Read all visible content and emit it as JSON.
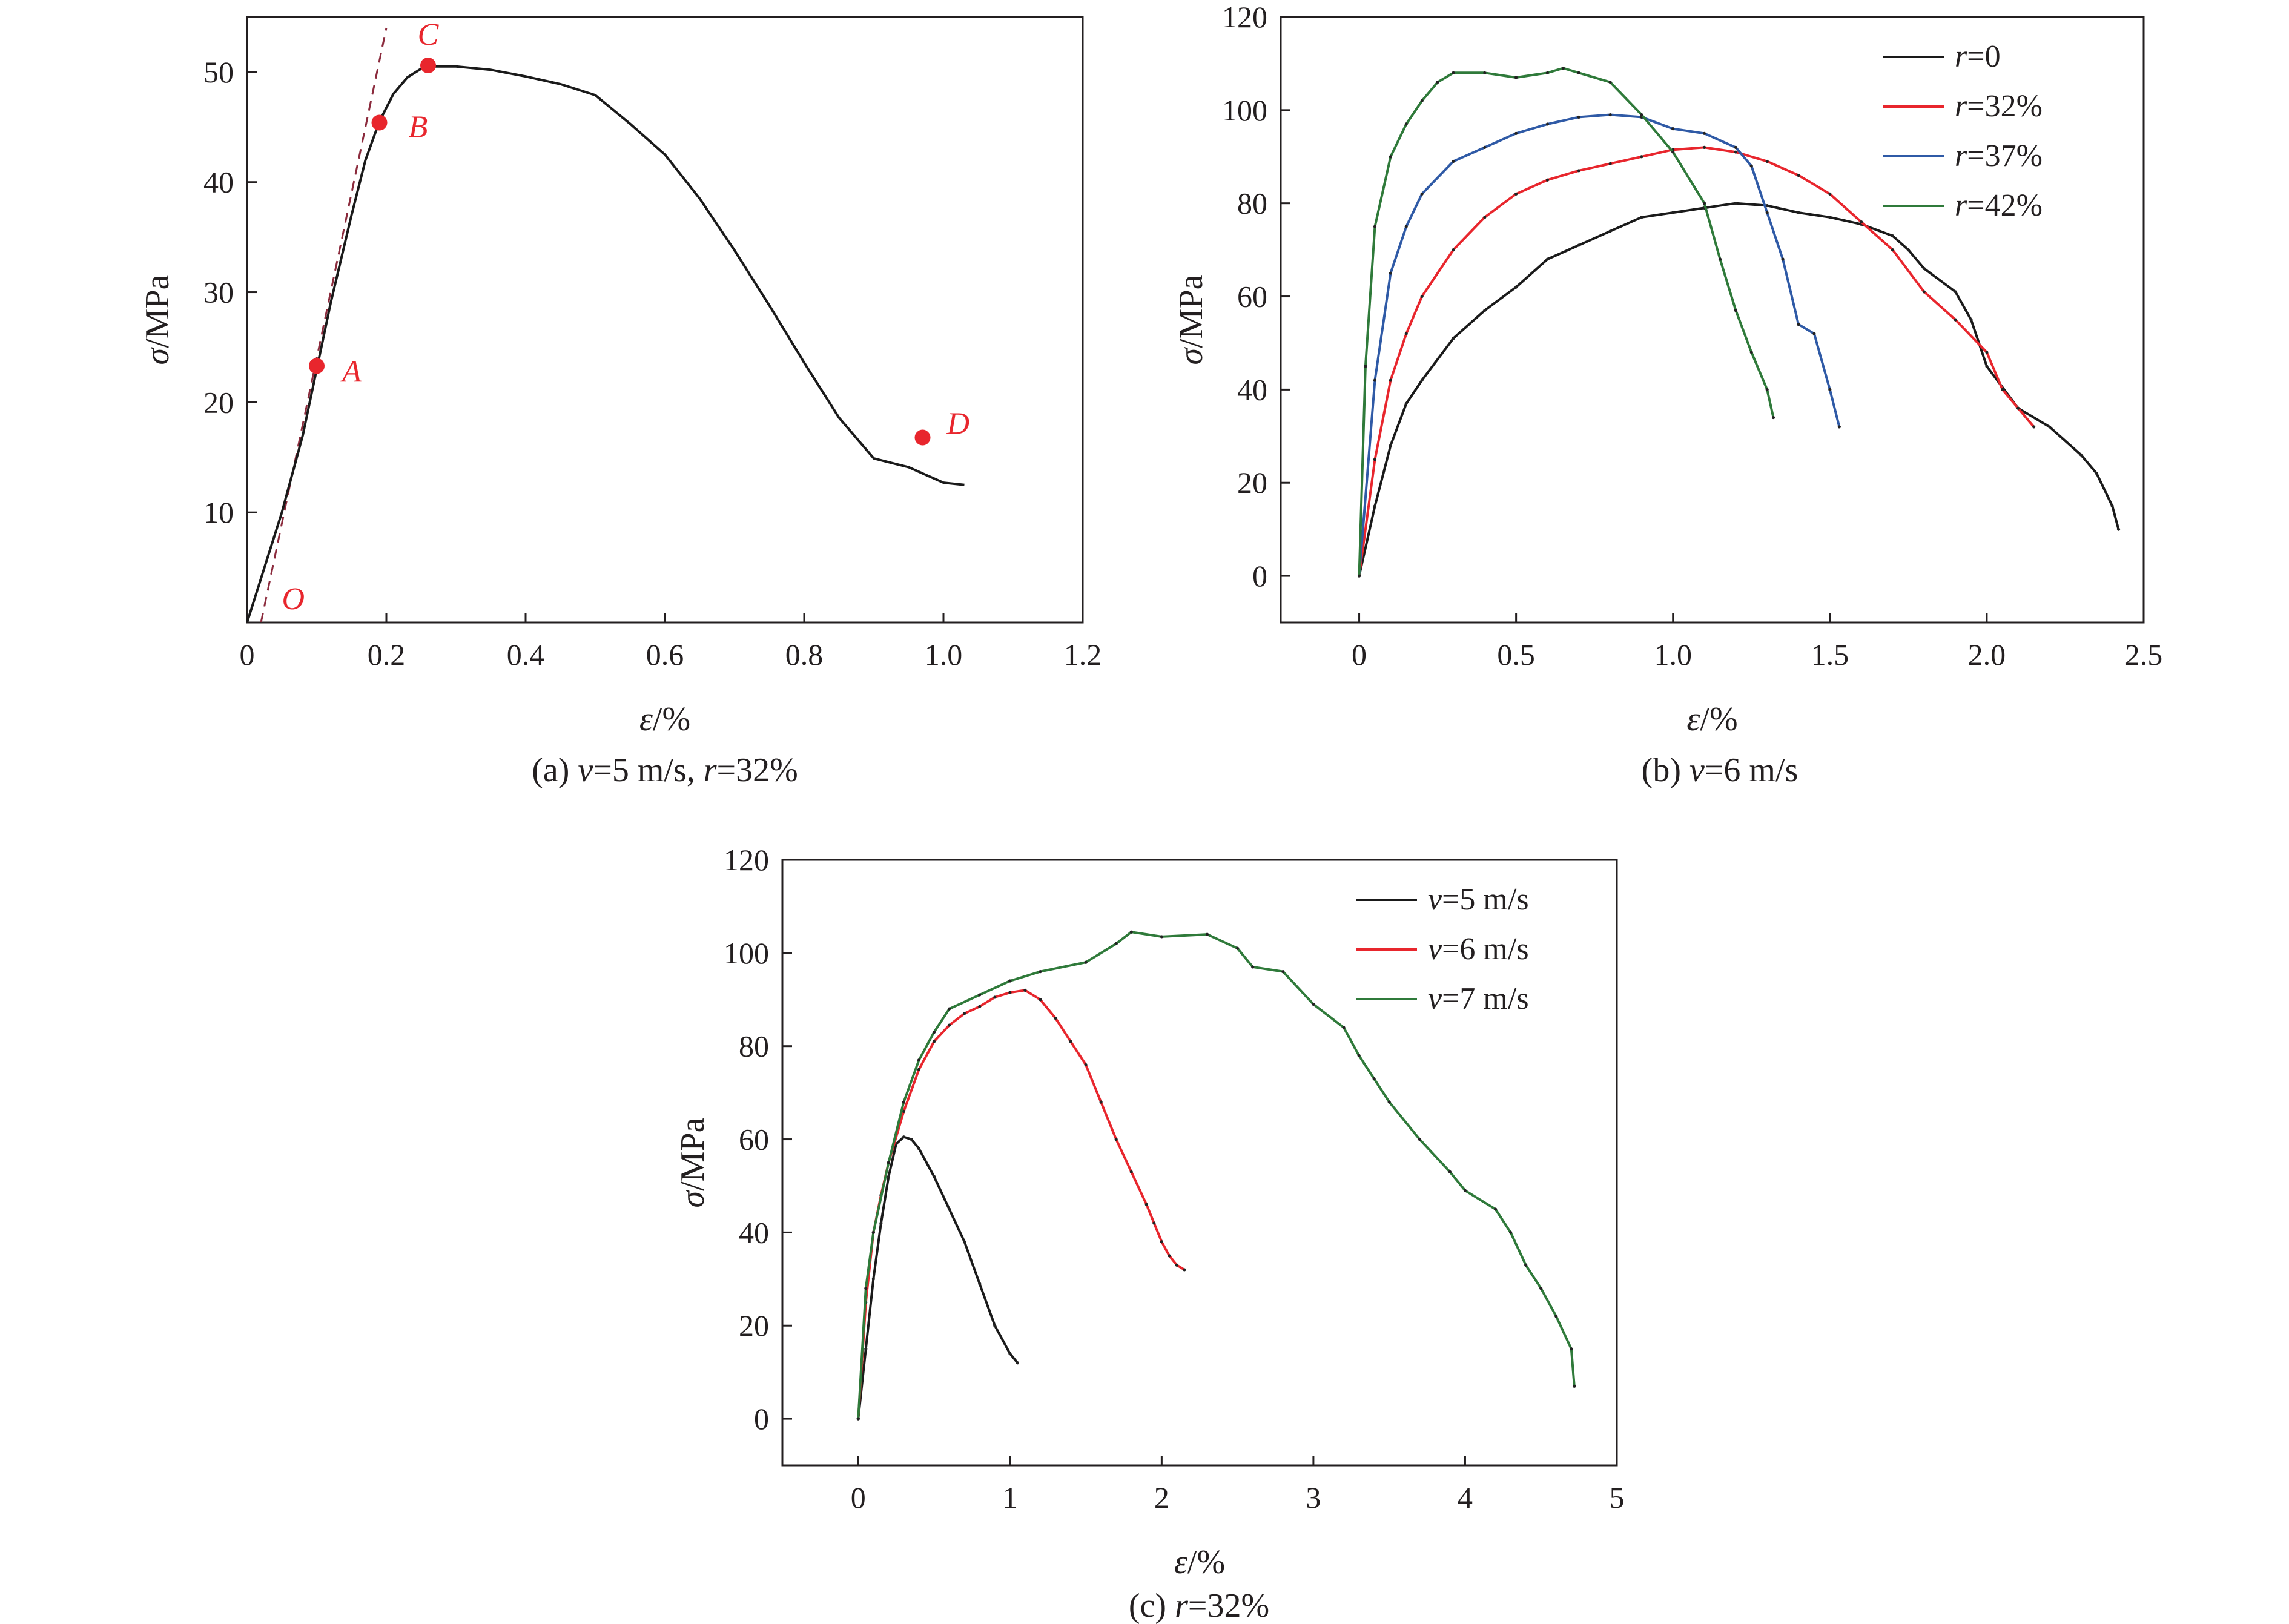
{
  "colors": {
    "black": "#1a1a1a",
    "red": "#e8262d",
    "blue": "#2f5aa6",
    "green": "#2f7a3a",
    "dashed": "#8b2a3c",
    "marker": "#e8262d"
  },
  "chart_data": [
    {
      "id": "a",
      "type": "line",
      "caption_parts": [
        "(a) ",
        "v",
        "=5 m/s, ",
        "r",
        "=32%"
      ],
      "xlabel_sym": "ε",
      "xlabel_unit": "/%",
      "ylabel_sym": "σ",
      "ylabel_unit": "/MPa",
      "xlim": [
        0,
        1.2
      ],
      "ylim": [
        0,
        55
      ],
      "xticks": [
        0,
        0.2,
        0.4,
        0.6,
        0.8,
        1.0,
        1.2
      ],
      "xtick_labels": [
        "0",
        "0.2",
        "0.4",
        "0.6",
        "0.8",
        "1.0",
        "1.2"
      ],
      "yticks": [
        10,
        20,
        30,
        40,
        50
      ],
      "ytick_labels": [
        "10",
        "20",
        "30",
        "40",
        "50"
      ],
      "series": [
        {
          "color": "black",
          "x": [
            0,
            0.02,
            0.05,
            0.08,
            0.1,
            0.12,
            0.15,
            0.17,
            0.19,
            0.21,
            0.23,
            0.25,
            0.27,
            0.3,
            0.35,
            0.4,
            0.45,
            0.5,
            0.55,
            0.6,
            0.65,
            0.7,
            0.75,
            0.8,
            0.85,
            0.9,
            0.95,
            1.0,
            1.03
          ],
          "y": [
            0,
            4,
            10,
            17,
            23,
            29,
            37,
            42,
            45.5,
            48,
            49.5,
            50.3,
            50.5,
            50.5,
            50.2,
            49.6,
            48.9,
            47.9,
            45.3,
            42.5,
            38.5,
            33.8,
            28.8,
            23.6,
            18.6,
            14.9,
            14.1,
            12.7,
            12.5
          ]
        }
      ],
      "dashed_line": {
        "x": [
          0.02,
          0.2
        ],
        "y": [
          0,
          54
        ]
      },
      "markers": [
        {
          "label": "A",
          "x": 0.1,
          "y": 23.3
        },
        {
          "label": "B",
          "x": 0.19,
          "y": 45.4
        },
        {
          "label": "C",
          "x": 0.26,
          "y": 50.6
        },
        {
          "label": "D",
          "x": 0.97,
          "y": 16.8
        }
      ],
      "origin_label": "O"
    },
    {
      "id": "b",
      "type": "line",
      "caption_parts": [
        "(b) ",
        "v",
        "=6 m/s",
        "",
        ""
      ],
      "xlabel_sym": "ε",
      "xlabel_unit": "/%",
      "ylabel_sym": "σ",
      "ylabel_unit": "/MPa",
      "xlim": [
        -0.25,
        2.5
      ],
      "ylim": [
        -10,
        120
      ],
      "xticks": [
        0,
        0.5,
        1.0,
        1.5,
        2.0,
        2.5
      ],
      "xtick_labels": [
        "0",
        "0.5",
        "1.0",
        "1.5",
        "2.0",
        "2.5"
      ],
      "yticks": [
        0,
        20,
        40,
        60,
        80,
        100,
        120
      ],
      "ytick_labels": [
        "0",
        "20",
        "40",
        "60",
        "80",
        "100",
        "120"
      ],
      "legend_position": "top-right",
      "series": [
        {
          "name_sym": "r",
          "name_rest": "=0",
          "color": "black",
          "x": [
            0,
            0.05,
            0.1,
            0.15,
            0.2,
            0.3,
            0.4,
            0.5,
            0.6,
            0.7,
            0.8,
            0.9,
            1.0,
            1.1,
            1.2,
            1.3,
            1.4,
            1.5,
            1.6,
            1.7,
            1.75,
            1.8,
            1.9,
            1.95,
            2.0,
            2.1,
            2.2,
            2.3,
            2.35,
            2.4,
            2.42
          ],
          "y": [
            0,
            15,
            28,
            37,
            42,
            51,
            57,
            62,
            68,
            71,
            74,
            77,
            78,
            79,
            80,
            79.5,
            78,
            77,
            75.5,
            73,
            70,
            66,
            61,
            55,
            45,
            36,
            32,
            26,
            22,
            15,
            10
          ]
        },
        {
          "name_sym": "r",
          "name_rest": "=32%",
          "color": "red",
          "x": [
            0,
            0.05,
            0.1,
            0.15,
            0.2,
            0.3,
            0.4,
            0.5,
            0.6,
            0.7,
            0.8,
            0.9,
            1.0,
            1.1,
            1.2,
            1.3,
            1.4,
            1.5,
            1.6,
            1.7,
            1.8,
            1.9,
            2.0,
            2.05,
            2.1,
            2.15
          ],
          "y": [
            0,
            25,
            42,
            52,
            60,
            70,
            77,
            82,
            85,
            87,
            88.5,
            90,
            91.5,
            92,
            91,
            89,
            86,
            82,
            76,
            70,
            61,
            55,
            48,
            40,
            36,
            32
          ]
        },
        {
          "name_sym": "r",
          "name_rest": "=37%",
          "color": "blue",
          "x": [
            0,
            0.05,
            0.1,
            0.15,
            0.2,
            0.3,
            0.4,
            0.5,
            0.6,
            0.7,
            0.8,
            0.9,
            1.0,
            1.1,
            1.2,
            1.25,
            1.3,
            1.35,
            1.4,
            1.45,
            1.5,
            1.53
          ],
          "y": [
            0,
            42,
            65,
            75,
            82,
            89,
            92,
            95,
            97,
            98.5,
            99,
            98.5,
            96,
            95,
            92,
            88,
            78,
            68,
            54,
            52,
            40,
            32
          ]
        },
        {
          "name_sym": "r",
          "name_rest": "=42%",
          "color": "green",
          "x": [
            0,
            0.02,
            0.05,
            0.1,
            0.15,
            0.2,
            0.25,
            0.3,
            0.4,
            0.5,
            0.6,
            0.65,
            0.7,
            0.8,
            0.9,
            1.0,
            1.1,
            1.15,
            1.2,
            1.25,
            1.3,
            1.32
          ],
          "y": [
            0,
            45,
            75,
            90,
            97,
            102,
            106,
            108,
            108,
            107,
            108,
            109,
            108,
            106,
            99,
            91,
            80,
            68,
            57,
            48,
            40,
            34
          ]
        }
      ]
    },
    {
      "id": "c",
      "type": "line",
      "caption_parts": [
        "(c) ",
        "r",
        "=32%",
        "",
        ""
      ],
      "xlabel_sym": "ε",
      "xlabel_unit": "/%",
      "ylabel_sym": "σ",
      "ylabel_unit": "/MPa",
      "xlim": [
        -0.5,
        5
      ],
      "ylim": [
        -10,
        120
      ],
      "xticks": [
        0,
        1,
        2,
        3,
        4,
        5
      ],
      "xtick_labels": [
        "0",
        "1",
        "2",
        "3",
        "4",
        "5"
      ],
      "yticks": [
        0,
        20,
        40,
        60,
        80,
        100,
        120
      ],
      "ytick_labels": [
        "0",
        "20",
        "40",
        "60",
        "80",
        "100",
        "120"
      ],
      "legend_position": "top-right",
      "series": [
        {
          "name_sym": "v",
          "name_rest": "=5 m/s",
          "color": "black",
          "x": [
            0,
            0.05,
            0.1,
            0.15,
            0.2,
            0.25,
            0.3,
            0.35,
            0.4,
            0.5,
            0.6,
            0.7,
            0.8,
            0.9,
            1.0,
            1.05
          ],
          "y": [
            0,
            15,
            30,
            42,
            52,
            59,
            60.5,
            60,
            58,
            52,
            45,
            38,
            29,
            20,
            14,
            12
          ]
        },
        {
          "name_sym": "v",
          "name_rest": "=6 m/s",
          "color": "red",
          "x": [
            0,
            0.05,
            0.1,
            0.15,
            0.2,
            0.3,
            0.4,
            0.5,
            0.6,
            0.7,
            0.8,
            0.9,
            1.0,
            1.1,
            1.2,
            1.3,
            1.4,
            1.5,
            1.6,
            1.7,
            1.8,
            1.9,
            1.95,
            2.0,
            2.05,
            2.1,
            2.15
          ],
          "y": [
            0,
            25,
            40,
            48,
            55,
            66,
            75,
            81,
            84.5,
            87,
            88.5,
            90.5,
            91.5,
            92,
            90,
            86,
            81,
            76,
            68,
            60,
            53,
            46,
            42,
            38,
            35,
            33,
            32
          ]
        },
        {
          "name_sym": "v",
          "name_rest": "=7 m/s",
          "color": "green",
          "x": [
            0,
            0.05,
            0.1,
            0.2,
            0.3,
            0.4,
            0.5,
            0.6,
            0.8,
            1.0,
            1.2,
            1.5,
            1.7,
            1.8,
            2.0,
            2.3,
            2.5,
            2.6,
            2.8,
            3.0,
            3.2,
            3.3,
            3.4,
            3.5,
            3.7,
            3.9,
            4.0,
            4.2,
            4.3,
            4.4,
            4.5,
            4.6,
            4.7,
            4.72
          ],
          "y": [
            0,
            28,
            40,
            55,
            68,
            77,
            83,
            88,
            91,
            94,
            96,
            98,
            102,
            104.5,
            103.5,
            104,
            101,
            97,
            96,
            89,
            84,
            78,
            73,
            68,
            60,
            53,
            49,
            45,
            40,
            33,
            28,
            22,
            15,
            7
          ]
        }
      ]
    }
  ]
}
